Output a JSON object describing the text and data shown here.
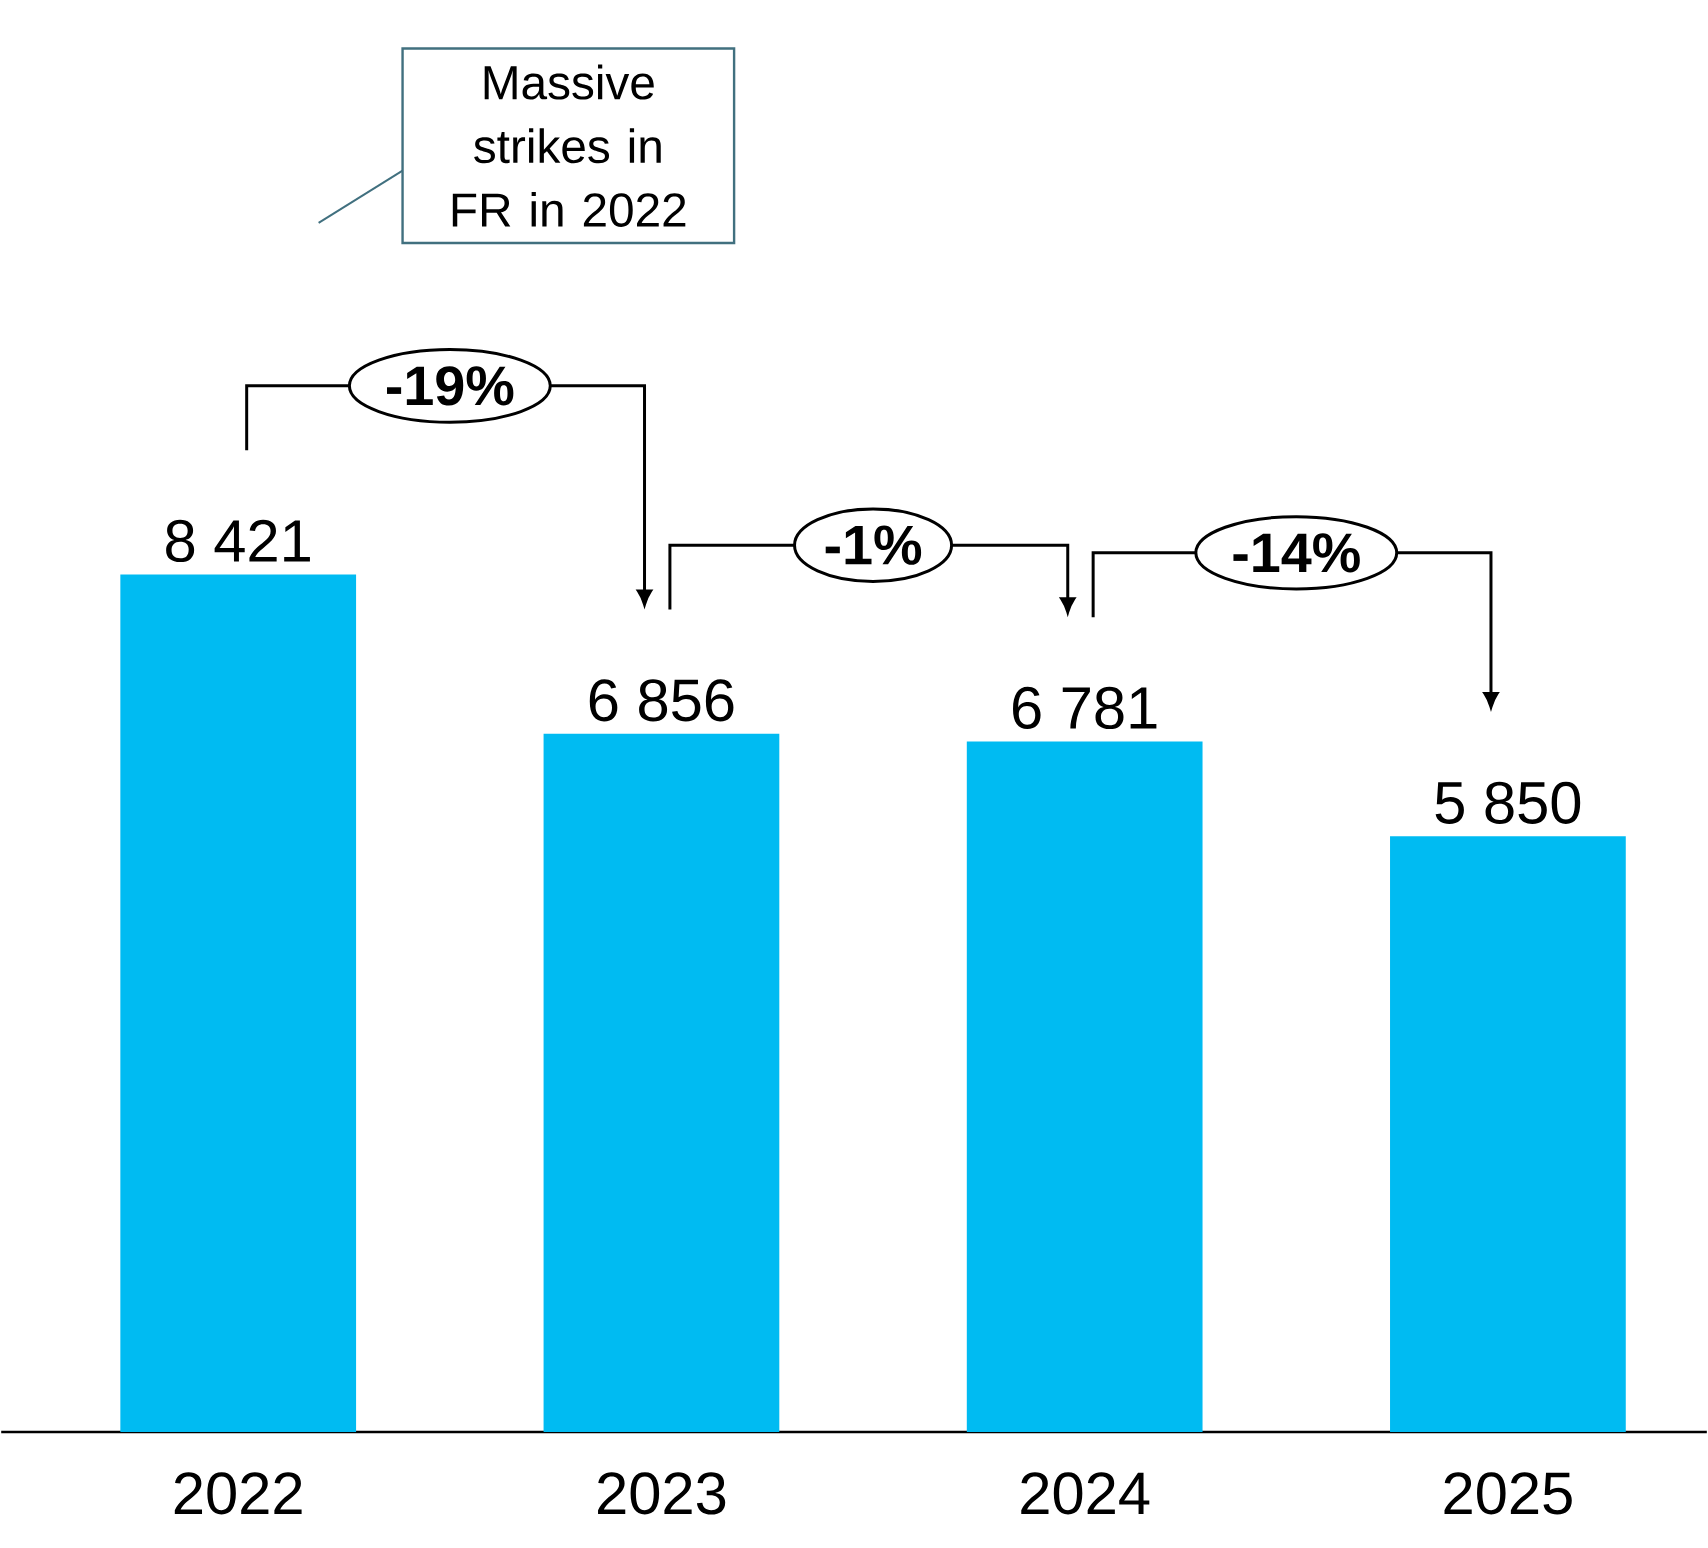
{
  "chart_data": {
    "type": "bar",
    "categories": [
      "2022",
      "2023",
      "2024",
      "2025"
    ],
    "values": [
      8421,
      6856,
      6781,
      5850
    ],
    "value_labels": [
      "8 421",
      "6 856",
      "6 781",
      "5 850"
    ],
    "color": "#00bbf2",
    "annotations": [
      "Massive strikes in FR in 2022",
      "-19%",
      "-1%",
      "-14%"
    ]
  }
}
